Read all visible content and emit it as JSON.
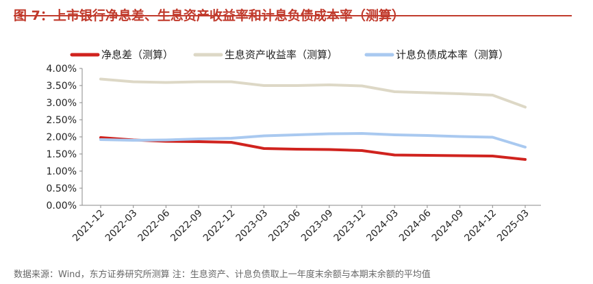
{
  "figure": {
    "title": "图 7：上市银行净息差、生息资产收益率和计息负债成本率（测算）",
    "source": "数据来源：Wind，东方证券研究所测算 注：生息资产、计息负债取上一年度末余额与本期末余额的平均值"
  },
  "colors": {
    "title": "#C0392B",
    "nim": "#D0231E",
    "asset_yield": "#DDD8C6",
    "liability_cost": "#A9C9F0"
  },
  "chart_data": {
    "type": "line",
    "title": "",
    "xlabel": "",
    "ylabel": "",
    "ylim": [
      0,
      0.04
    ],
    "y_ticks": [
      "0.00%",
      "0.50%",
      "1.00%",
      "1.50%",
      "2.00%",
      "2.50%",
      "3.00%",
      "3.50%",
      "4.00%"
    ],
    "y_tick_values": [
      0,
      0.005,
      0.01,
      0.015,
      0.02,
      0.025,
      0.03,
      0.035,
      0.04
    ],
    "categories": [
      "2021-12",
      "2022-03",
      "2022-06",
      "2022-09",
      "2022-12",
      "2023-03",
      "2023-06",
      "2023-09",
      "2023-12",
      "2024-03",
      "2024-06",
      "2024-09",
      "2024-12",
      "2025-03"
    ],
    "grid": false,
    "legend_position": "top",
    "series": [
      {
        "name": "净息差（测算）",
        "color": "#D0231E",
        "values": [
          0.0198,
          0.0191,
          0.0187,
          0.0186,
          0.0184,
          0.0166,
          0.0164,
          0.0163,
          0.016,
          0.0147,
          0.0146,
          0.0145,
          0.0144,
          0.0134
        ]
      },
      {
        "name": "生息资产收益率（测算）",
        "color": "#DDD8C6",
        "values": [
          0.0369,
          0.0361,
          0.0359,
          0.0361,
          0.0361,
          0.035,
          0.035,
          0.0352,
          0.0349,
          0.0332,
          0.0329,
          0.0326,
          0.0322,
          0.0287
        ]
      },
      {
        "name": "计息负债成本率（测算）",
        "color": "#A9C9F0",
        "values": [
          0.0192,
          0.019,
          0.0191,
          0.0194,
          0.0196,
          0.0203,
          0.0206,
          0.0209,
          0.021,
          0.0206,
          0.0204,
          0.0201,
          0.0199,
          0.017
        ]
      }
    ]
  }
}
